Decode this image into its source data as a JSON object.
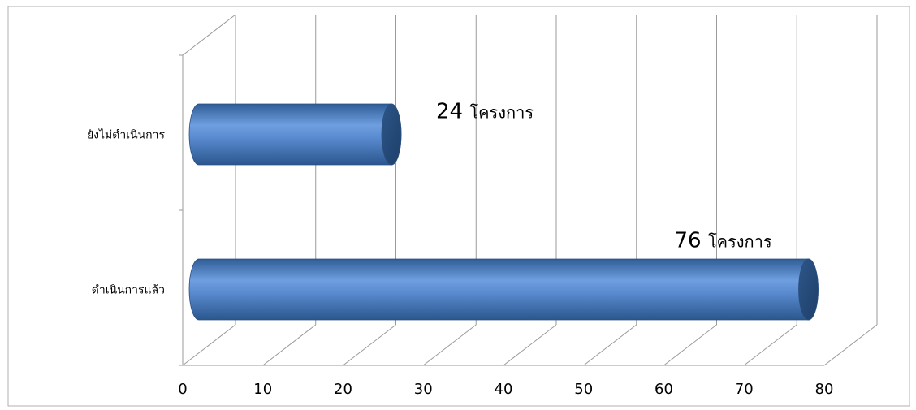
{
  "chart_data": {
    "type": "bar",
    "orientation": "horizontal",
    "style": "3d-cylinder",
    "categories": [
      "ยังไม่ดำเนินการ",
      "ดำเนินการแล้ว"
    ],
    "values": [
      24,
      76
    ],
    "data_labels": [
      {
        "number": "24",
        "unit": "โครงการ"
      },
      {
        "number": "76",
        "unit": "โครงการ"
      }
    ],
    "xlim": [
      0,
      80
    ],
    "x_ticks": [
      0,
      10,
      20,
      30,
      40,
      50,
      60,
      70,
      80
    ],
    "grid": true,
    "legend": "none",
    "bar_color": "#4f81bd"
  }
}
